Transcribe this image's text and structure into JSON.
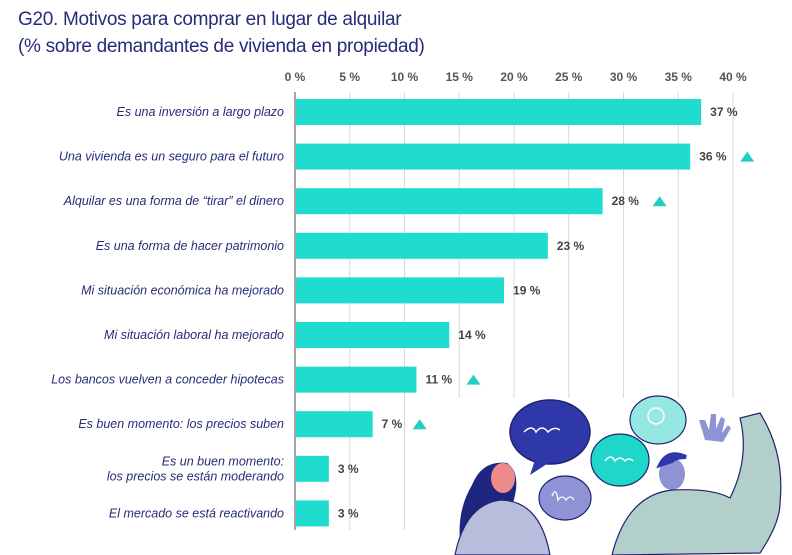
{
  "title_line1": "G20. Motivos para comprar en lugar de alquilar",
  "title_line2": "(% sobre demandantes de vivienda en propiedad)",
  "colors": {
    "bar": "#1fdccf",
    "title": "#262c78",
    "triangle": "#1fcfc4"
  },
  "chart_data": {
    "type": "bar",
    "orientation": "horizontal",
    "title": "G20. Motivos para comprar en lugar de alquilar (% sobre demandantes de vivienda en propiedad)",
    "xlim": [
      0,
      40
    ],
    "ticks": [
      "0 %",
      "5 %",
      "10 %",
      "15 %",
      "20 %",
      "25 %",
      "30 %",
      "35 %",
      "40 %"
    ],
    "tick_values": [
      0,
      5,
      10,
      15,
      20,
      25,
      30,
      35,
      40
    ],
    "grid": true,
    "categories": [
      "Es una inversión a largo plazo",
      "Una vivienda es un seguro para el futuro",
      "Alquilar es una forma de “tirar” el dinero",
      "Es una forma de hacer patrimonio",
      "Mi situación económica ha mejorado",
      "Mi situación laboral ha mejorado",
      "Los bancos vuelven a conceder hipotecas",
      "Es buen momento: los precios suben",
      "Es un buen momento:\nlos precios se están moderando",
      "El mercado se está reactivando"
    ],
    "values": [
      37,
      36,
      28,
      23,
      19,
      14,
      11,
      7,
      3,
      3
    ],
    "value_labels": [
      "37 %",
      "36 %",
      "28 %",
      "23 %",
      "19 %",
      "14 %",
      "11 %",
      "7 %",
      "3 %",
      "3 %"
    ],
    "increase_marker": [
      false,
      true,
      true,
      false,
      false,
      false,
      true,
      true,
      false,
      false
    ]
  }
}
